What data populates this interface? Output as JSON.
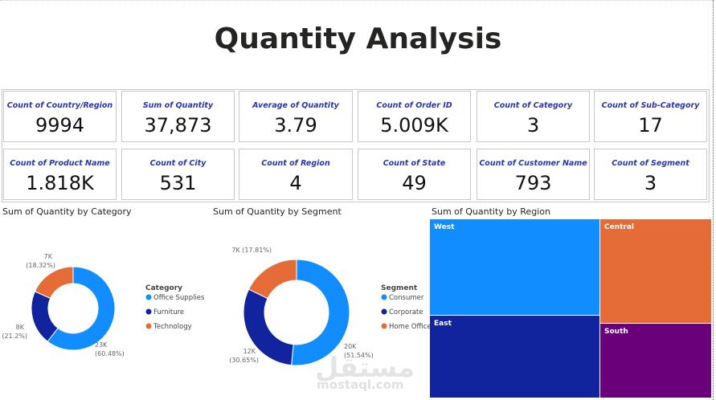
{
  "title": "Quantity Analysis",
  "kpis": [
    {
      "label": "Count of Country/Region",
      "value": "9994"
    },
    {
      "label": "Sum of Quantity",
      "value": "37,873"
    },
    {
      "label": "Average of Quantity",
      "value": "3.79"
    },
    {
      "label": "Count of Order ID",
      "value": "5.009K"
    },
    {
      "label": "Count of Category",
      "value": "3"
    },
    {
      "label": "Count of Sub-Category",
      "value": "17"
    },
    {
      "label": "Count of Product Name",
      "value": "1.818K"
    },
    {
      "label": "Count of City",
      "value": "531"
    },
    {
      "label": "Count of Region",
      "value": "4"
    },
    {
      "label": "Count of State",
      "value": "49"
    },
    {
      "label": "Count of Customer Name",
      "value": "793"
    },
    {
      "label": "Count of Segment",
      "value": "3"
    }
  ],
  "watermark": {
    "arabic": "مستقل",
    "latin": "mostaql.com"
  },
  "chart_data": [
    {
      "type": "pie",
      "title": "Sum of Quantity by Category",
      "legend_title": "Category",
      "legend": "right",
      "slices": [
        {
          "name": "Office Supplies",
          "label": "23K",
          "pct": "(60.48%)",
          "value": 60.48,
          "color": "#118DFF"
        },
        {
          "name": "Furniture",
          "label": "8K",
          "pct": "(21.2%)",
          "value": 21.2,
          "color": "#12239E"
        },
        {
          "name": "Technology",
          "label": "7K",
          "pct": "(18.32%)",
          "value": 18.32,
          "color": "#E66C37"
        }
      ]
    },
    {
      "type": "pie",
      "title": "Sum of Quantity by Segment",
      "legend_title": "Segment",
      "legend": "right",
      "slices": [
        {
          "name": "Consumer",
          "label": "20K",
          "pct": "(51.54%)",
          "value": 51.54,
          "color": "#118DFF"
        },
        {
          "name": "Corporate",
          "label": "12K",
          "pct": "(30.65%)",
          "value": 30.65,
          "color": "#12239E"
        },
        {
          "name": "Home Office",
          "label": "7K",
          "pct": "(17.81%)",
          "value": 17.81,
          "color": "#E66C37"
        }
      ]
    },
    {
      "type": "treemap",
      "title": "Sum of Quantity by Region",
      "items": [
        {
          "name": "West",
          "color": "#118DFF"
        },
        {
          "name": "Central",
          "color": "#E66C37"
        },
        {
          "name": "East",
          "color": "#12239E"
        },
        {
          "name": "South",
          "color": "#6B007B"
        }
      ]
    }
  ]
}
